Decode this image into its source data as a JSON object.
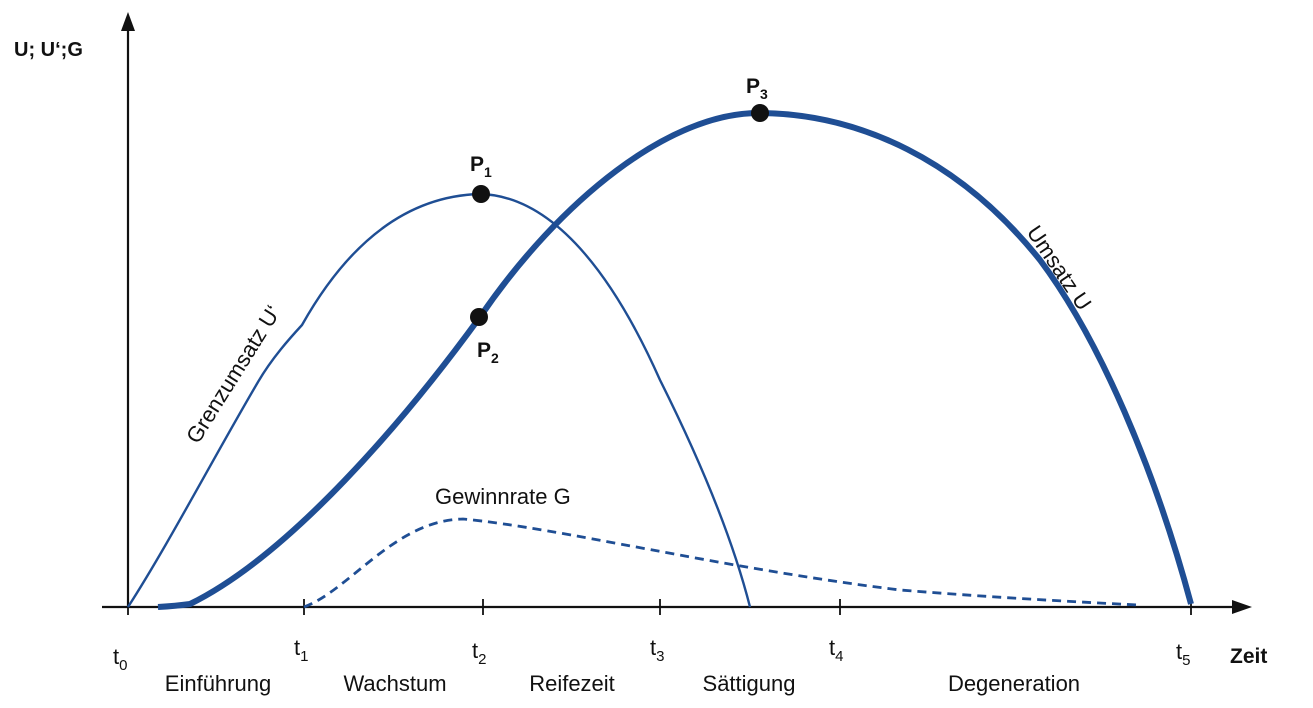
{
  "y_axis_label": "U; U‘;G",
  "x_axis_label": "Zeit",
  "colors": {
    "curve": "#1f4e94",
    "axis": "#111111",
    "point": "#111111"
  },
  "ticks": [
    {
      "t": "t",
      "sub": "0"
    },
    {
      "t": "t",
      "sub": "1"
    },
    {
      "t": "t",
      "sub": "2"
    },
    {
      "t": "t",
      "sub": "3"
    },
    {
      "t": "t",
      "sub": "4"
    },
    {
      "t": "t",
      "sub": "5"
    }
  ],
  "phases": [
    "Einführung",
    "Wachstum",
    "Reifezeit",
    "Sättigung",
    "Degeneration"
  ],
  "curves": {
    "marginal": "Grenzumsatz U‘",
    "revenue": "Umsatz U",
    "profit": "Gewinnrate G"
  },
  "points": [
    {
      "p": "P",
      "sub": "1"
    },
    {
      "p": "P",
      "sub": "2"
    },
    {
      "p": "P",
      "sub": "3"
    }
  ]
}
